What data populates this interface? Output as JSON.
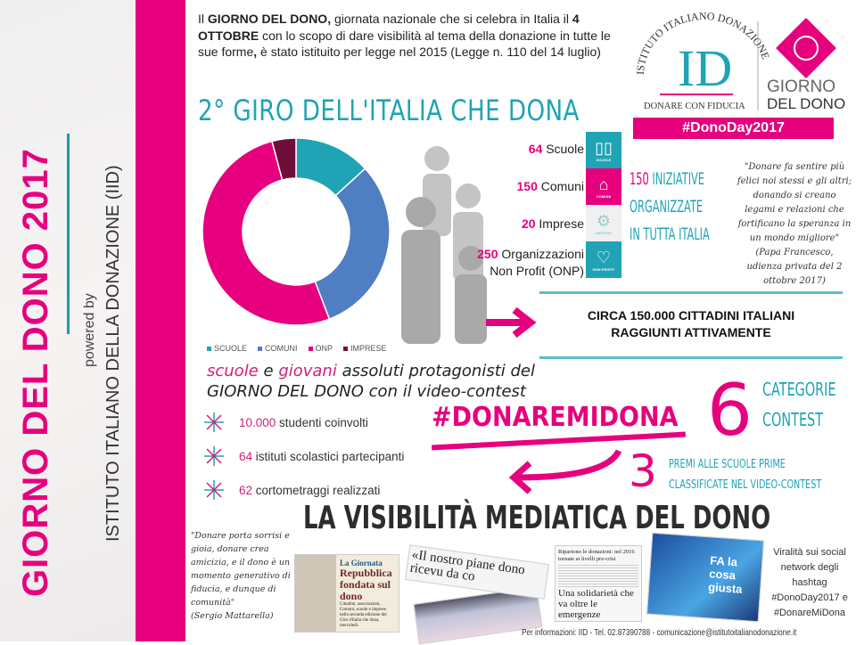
{
  "sidebar": {
    "title": "GIORNO DEL DONO 2017",
    "powered": "powered by",
    "institute": "ISTITUTO ITALIANO DELLA DONAZIONE (IID)"
  },
  "intro": {
    "p1": "Il ",
    "b1": "GIORNO DEL DONO,",
    "p2": " giornata nazionale che si celebra in Italia il ",
    "b2": "4 OTTOBRE",
    "p3": " con lo scopo di dare visibilità al tema della donazione in tutte le sue forme",
    "b3": ",",
    "p4": " è stato istituito per legge nel 2015 (Legge n. 110 del 14 luglio)"
  },
  "logo": {
    "arc": "ISTITUTO ITALIANO DONAZIONE",
    "mono": "ID",
    "motto": "DONARE CON FIDUCIA",
    "gdd1": "GIORNO",
    "gdd2": "DEL DONO",
    "hashtag": "#DonoDay2017"
  },
  "giro": {
    "title": "2° GIRO DELL'ITALIA CHE DONA"
  },
  "stats": [
    {
      "num": "64",
      "label": "Scuole",
      "icon": "book-icon",
      "tile": "SCUOLE",
      "color": "#1fa3b5"
    },
    {
      "num": "150",
      "label": "Comuni",
      "icon": "town-hall-icon",
      "tile": "COMUNI",
      "color": "#e6007e"
    },
    {
      "num": "20",
      "label": "Imprese",
      "icon": "gears-icon",
      "tile": "IMPRESE",
      "color": "#f0f0f0"
    },
    {
      "num": "250",
      "label": "Organizzazioni Non Profit (ONP)",
      "icon": "heart-icon",
      "tile": "NON PROFIT",
      "color": "#1fa3b5"
    }
  ],
  "initiatives": {
    "num": "150",
    "l1": "INIZIATIVE",
    "l2": "ORGANIZZATE",
    "l3": "IN TUTTA ITALIA"
  },
  "quote_pope": {
    "text": "\"Donare fa sentire più felici noi stessi e gli altri; donando si creano legami e relazioni che fortificano la speranza in un mondo migliore\"",
    "author": "(Papa Francesco, udienza privata del 2 ottobre 2017)"
  },
  "citizens": {
    "l1": "CIRCA 150.000 CITTADINI ITALIANI",
    "l2": "RAGGIUNTI ATTIVAMENTE"
  },
  "chart_data": {
    "type": "pie",
    "donut": true,
    "categories": [
      "SCUOLE",
      "COMUNI",
      "ONP",
      "IMPRESE"
    ],
    "values": [
      64,
      150,
      250,
      20
    ],
    "colors": [
      "#1fa3b5",
      "#4f7ec3",
      "#e6007e",
      "#6d0f3a"
    ],
    "legend": "bottom"
  },
  "contest": {
    "w1": "scuole",
    "t1": " e ",
    "w2": "giovani",
    "t2": " assoluti protagonisti del",
    "line2a": "GIORNO DEL DONO",
    "line2b": " con il video-contest",
    "bullets": [
      {
        "num": "10.000",
        "text": " studenti coinvolti"
      },
      {
        "num": "64",
        "text": " istituti scolastici partecipanti"
      },
      {
        "num": "62",
        "text": " cortometraggi realizzati"
      }
    ],
    "hashtag": "#DONAREMIDONA",
    "six": "6",
    "cat1": "CATEGORIE",
    "cat2": "CONTEST",
    "three": "3",
    "premi1": "PREMI ALLE SCUOLE PRIME",
    "premi2": "CLASSIFICATE NEL VIDEO-CONTEST"
  },
  "media": {
    "title": "LA VISIBILITÀ MEDIATICA DEL DONO",
    "quote": "\"Donare porta sorrisi e gioia, donare crea amicizia, e il dono è un momento generativo di fiducia, e dunque di comunità\"",
    "author": "(Sergio Mattarella)",
    "clip1_kicker": "La Giornata",
    "clip1_head": "Repubblica fondata sul dono",
    "clip1_body": "Cittadini, associazioni, Comuni, scuole e imprese nella seconda edizione del Giro d'Italia che dona, mercoledì.",
    "clip2_head": "«Il nostro piane dono ricevu da co",
    "clip3_top": "Ripartono le donazioni: nel 2016 tornate ai livelli pre-crisi",
    "clip3_head": "Una solidarietà che va oltre le emergenze",
    "clip4_head": "FA la cosa giusta",
    "viral": "Viralità sui social network degli hashtag #DonoDay2017 e #DonareMiDona"
  },
  "footer": "Per informazioni: IID - Tel. 02.87390788 - comunicazione@istitutoitalianodonazione.it"
}
